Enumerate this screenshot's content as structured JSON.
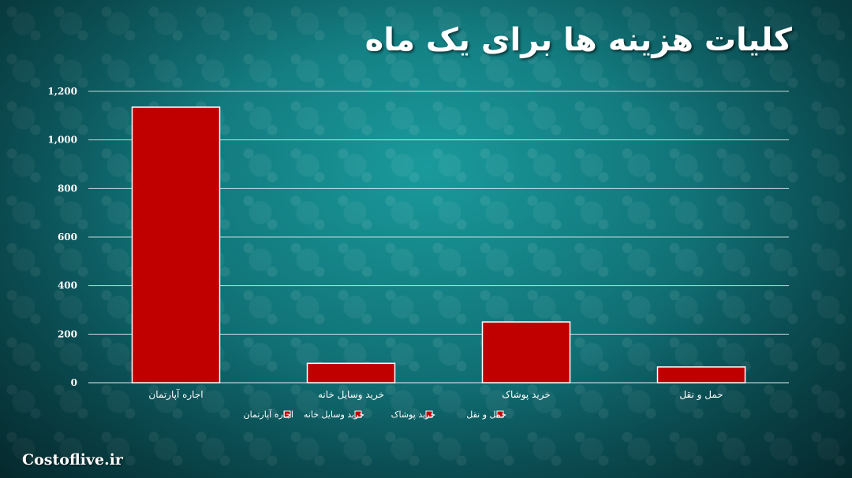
{
  "header": {
    "title": "کلیات هزینه ها برای یک ماه"
  },
  "footer": {
    "brand": "Costoflive.ir"
  },
  "colors": {
    "bar": "#c00000",
    "bar_stroke": "#ffffff",
    "grid": "#ffffff"
  },
  "chart_data": {
    "type": "bar",
    "categories": [
      "اجاره آپارتمان",
      "خرید وسایل خانه",
      "خرید پوشاک",
      "حمل و نقل"
    ],
    "values": [
      1135,
      80,
      250,
      65
    ],
    "yticks": [
      "0",
      "200",
      "400",
      "600",
      "800",
      "1,000",
      "1,200"
    ],
    "ylim": [
      0,
      1200
    ],
    "grid": true,
    "legend": {
      "placement": "bottom",
      "entries": [
        "اجاره آپارتمان",
        "خرید وسایل خانه",
        "خرید پوشاک",
        "حمل و نقل"
      ]
    }
  }
}
